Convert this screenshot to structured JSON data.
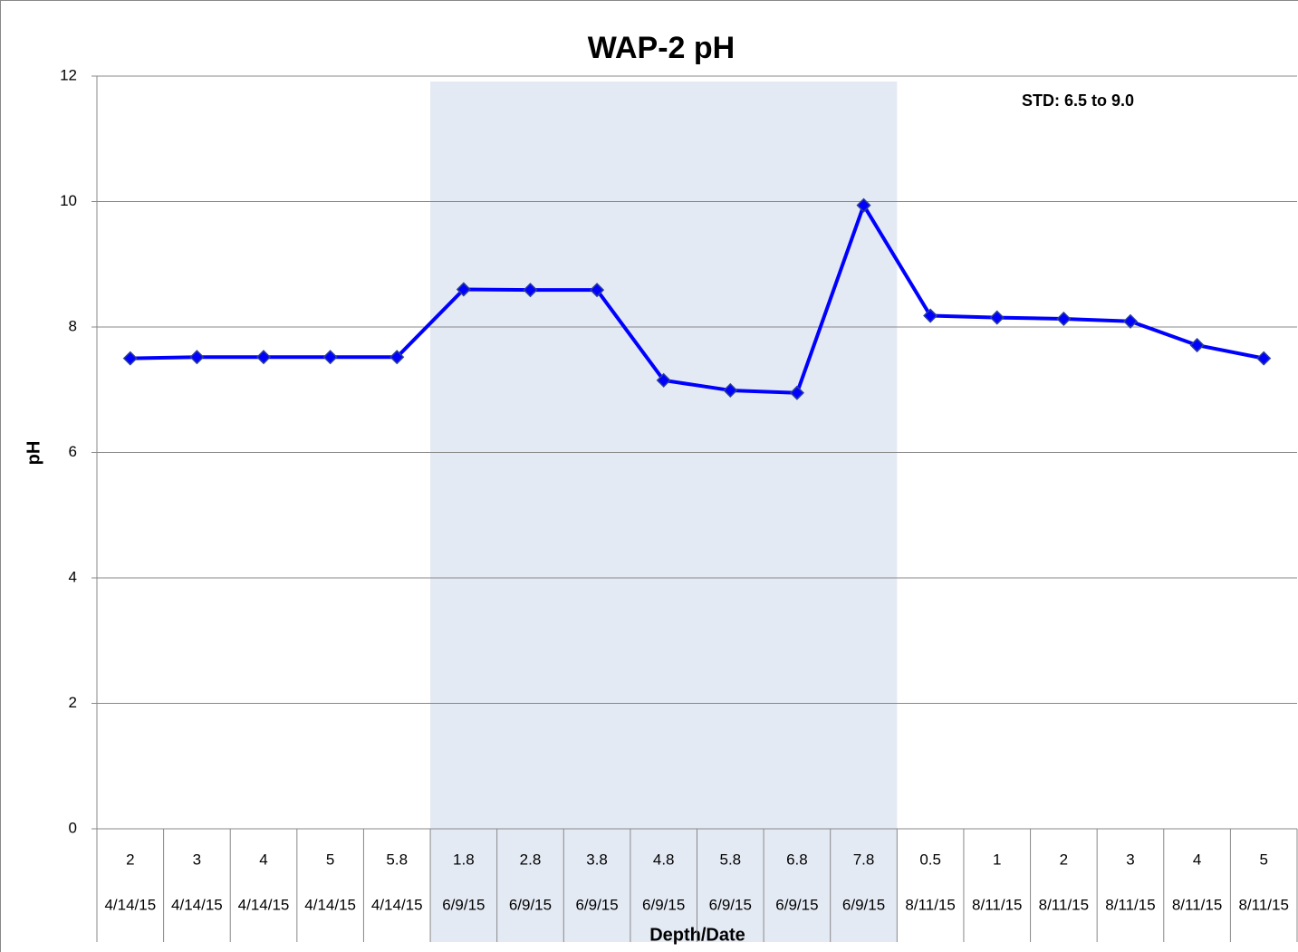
{
  "chart_data": {
    "type": "line",
    "title": "WAP-2 pH",
    "annotation": "STD: 6.5 to 9.0",
    "x_label": "Depth/Date",
    "y_label": "pH",
    "categories": [
      "2",
      "3",
      "4",
      "5",
      "5.8",
      "1.8",
      "2.8",
      "3.8",
      "4.8",
      "5.8",
      "6.8",
      "7.8",
      "0.5",
      "1",
      "2",
      "3",
      "4",
      "5"
    ],
    "dates": [
      "4/14/15",
      "4/14/15",
      "4/14/15",
      "4/14/15",
      "4/14/15",
      "6/9/15",
      "6/9/15",
      "6/9/15",
      "6/9/15",
      "6/9/15",
      "6/9/15",
      "6/9/15",
      "8/11/15",
      "8/11/15",
      "8/11/15",
      "8/11/15",
      "8/11/15",
      "8/11/15"
    ],
    "series": [
      {
        "name": "pH",
        "color": "#0000ff",
        "values": [
          7.5,
          7.52,
          7.52,
          7.52,
          7.52,
          8.6,
          8.59,
          8.59,
          7.15,
          6.99,
          6.95,
          9.94,
          8.18,
          8.15,
          8.13,
          8.09,
          7.71,
          7.5
        ]
      }
    ],
    "ylim": [
      0,
      12
    ],
    "yticks": [
      0,
      2,
      4,
      6,
      8,
      10,
      12
    ],
    "grid": true,
    "shaded_categories": [
      5,
      11
    ],
    "shade_color": "#e4eaf4"
  }
}
